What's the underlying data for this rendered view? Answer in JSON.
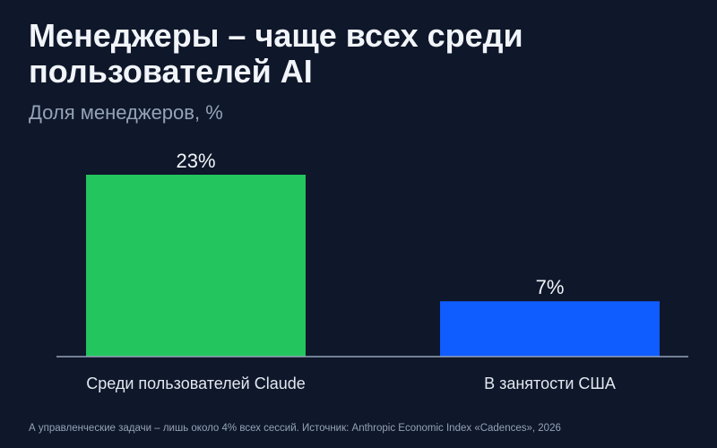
{
  "header": {
    "title": "Менеджеры – чаще всех среди пользователей AI",
    "subtitle": "Доля менеджеров, %"
  },
  "footnote": "А управленческие задачи – лишь около 4% всех сессий. Источник: Anthropic Economic Index «Cadences», 2026",
  "chart_data": {
    "type": "bar",
    "title": "Менеджеры – чаще всех среди пользователей AI",
    "subtitle": "Доля менеджеров, %",
    "categories": [
      "Среди пользователей Claude",
      "В занятости США"
    ],
    "values": [
      23,
      7
    ],
    "data_labels": [
      "23%",
      "7%"
    ],
    "bar_colors": [
      "#22c55e",
      "#0f5cff"
    ],
    "axis_color": "#94a3b8",
    "ylim": [
      0,
      25
    ],
    "grid": false,
    "xlabel": "",
    "ylabel": ""
  }
}
